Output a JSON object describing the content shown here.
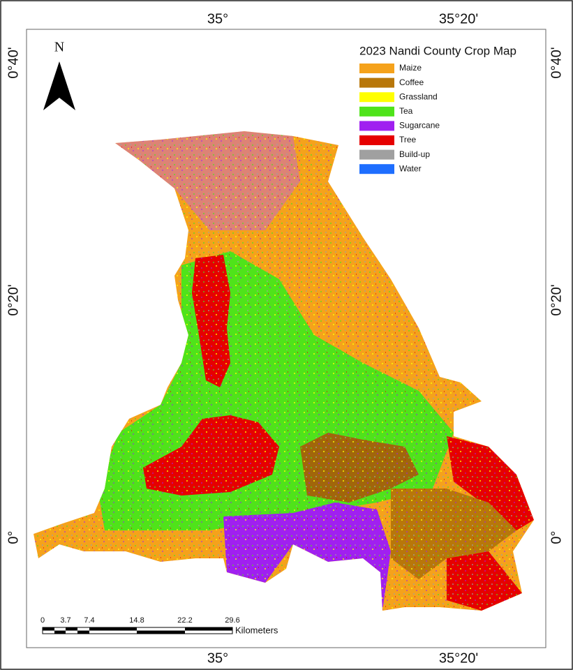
{
  "map": {
    "title": "2023 Nandi County Crop Map",
    "north_label": "N",
    "legend": [
      {
        "label": "Maize",
        "color": "#f5a21b"
      },
      {
        "label": "Coffee",
        "color": "#b8770a"
      },
      {
        "label": "Grassland",
        "color": "#ffff00"
      },
      {
        "label": "Tea",
        "color": "#4fe31a"
      },
      {
        "label": "Sugarcane",
        "color": "#a020f0"
      },
      {
        "label": "Tree",
        "color": "#e60000"
      },
      {
        "label": "Build-up",
        "color": "#a0a0a0"
      },
      {
        "label": "Water",
        "color": "#1e6eff"
      }
    ],
    "longitude_labels": [
      "35°",
      "35°20'"
    ],
    "latitude_labels": [
      "0°40'",
      "0°20'",
      "0°"
    ],
    "scale_bar": {
      "ticks": [
        "0",
        "3.7",
        "7.4",
        "14.8",
        "22.2",
        "29.6"
      ],
      "unit": "Kilometers"
    }
  }
}
